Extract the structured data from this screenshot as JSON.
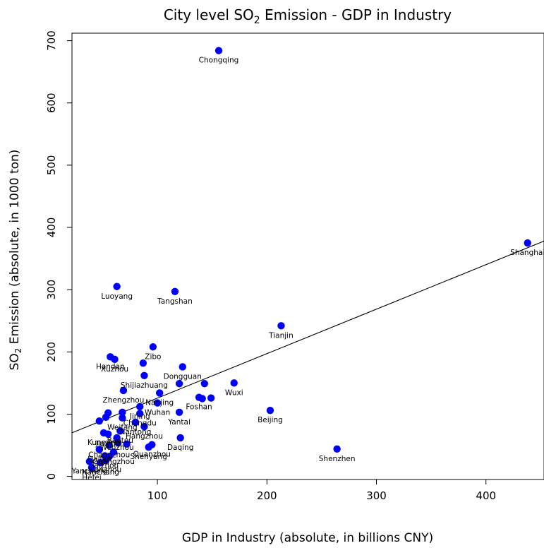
{
  "chart_data": {
    "type": "scatter",
    "title": "City level SO2 Emission - GDP in Industry",
    "title_parts": {
      "before": "City level SO",
      "subscript": "2",
      "after": " Emission - GDP in Industry"
    },
    "xlabel": "GDP in Industry (absolute, in billions CNY)",
    "ylabel": "SO2 Emission (absolute, in 1000 ton)",
    "ylabel_parts": {
      "before": "SO",
      "subscript": "2",
      "after": " Emission (absolute, in 1000 ton)"
    },
    "xlim": [
      22,
      453
    ],
    "ylim": [
      -5,
      712
    ],
    "x_ticks": [
      100,
      200,
      300,
      400
    ],
    "y_ticks": [
      0,
      100,
      200,
      300,
      400,
      500,
      600,
      700
    ],
    "grid": false,
    "point_color": "#0000ff",
    "trend_line": {
      "x1": 22,
      "y1": 70,
      "x2": 453,
      "y2": 378
    },
    "points": [
      {
        "x": 156,
        "y": 684,
        "label": "Chongqing"
      },
      {
        "x": 438,
        "y": 375,
        "label": "Shanghai"
      },
      {
        "x": 63,
        "y": 305,
        "label": "Luoyang"
      },
      {
        "x": 116,
        "y": 297,
        "label": "Tangshan"
      },
      {
        "x": 213,
        "y": 242,
        "label": "Tianjin"
      },
      {
        "x": 96,
        "y": 208,
        "label": "Zibo"
      },
      {
        "x": 57,
        "y": 192,
        "label": "Handan"
      },
      {
        "x": 61,
        "y": 188,
        "label": "Xuzhou"
      },
      {
        "x": 87,
        "y": 182,
        "label": ""
      },
      {
        "x": 123,
        "y": 176,
        "label": "Dongguan"
      },
      {
        "x": 88,
        "y": 162,
        "label": "Shijiazhuang"
      },
      {
        "x": 120,
        "y": 149,
        "label": ""
      },
      {
        "x": 143,
        "y": 149,
        "label": ""
      },
      {
        "x": 170,
        "y": 150,
        "label": "Wuxi"
      },
      {
        "x": 69,
        "y": 138,
        "label": "Zhengzhou"
      },
      {
        "x": 102,
        "y": 134,
        "label": "Nanjing"
      },
      {
        "x": 138,
        "y": 127,
        "label": "Foshan"
      },
      {
        "x": 149,
        "y": 126,
        "label": ""
      },
      {
        "x": 141,
        "y": 125,
        "label": ""
      },
      {
        "x": 100,
        "y": 118,
        "label": "Wuhan"
      },
      {
        "x": 84,
        "y": 112,
        "label": "Jining"
      },
      {
        "x": 203,
        "y": 106,
        "label": "Beijing"
      },
      {
        "x": 120,
        "y": 103,
        "label": "Yantai"
      },
      {
        "x": 68,
        "y": 103,
        "label": ""
      },
      {
        "x": 55,
        "y": 102,
        "label": ""
      },
      {
        "x": 84,
        "y": 101,
        "label": "Chengdu"
      },
      {
        "x": 68,
        "y": 94,
        "label": "Weifang"
      },
      {
        "x": 53,
        "y": 95,
        "label": ""
      },
      {
        "x": 47,
        "y": 89,
        "label": ""
      },
      {
        "x": 80,
        "y": 87,
        "label": "Nantong"
      },
      {
        "x": 88,
        "y": 80,
        "label": "Hangzhou"
      },
      {
        "x": 66,
        "y": 73,
        "label": "Baotou"
      },
      {
        "x": 51,
        "y": 70,
        "label": "Kunming"
      },
      {
        "x": 55,
        "y": 68,
        "label": "Jiaxing"
      },
      {
        "x": 63,
        "y": 62,
        "label": "Wenzhou"
      },
      {
        "x": 121,
        "y": 62,
        "label": "Daqing"
      },
      {
        "x": 64,
        "y": 54,
        "label": ""
      },
      {
        "x": 72,
        "y": 52,
        "label": ""
      },
      {
        "x": 95,
        "y": 51,
        "label": "Quanzhou"
      },
      {
        "x": 92,
        "y": 47,
        "label": "Shenyang"
      },
      {
        "x": 56,
        "y": 50,
        "label": "Changzhou"
      },
      {
        "x": 264,
        "y": 44,
        "label": "Shenzhen"
      },
      {
        "x": 47,
        "y": 43,
        "label": "Dalian"
      },
      {
        "x": 60,
        "y": 39,
        "label": "Guangzhou"
      },
      {
        "x": 52,
        "y": 33,
        "label": "Taizhou"
      },
      {
        "x": 56,
        "y": 32,
        "label": ""
      },
      {
        "x": 53,
        "y": 26,
        "label": "Lanzhou"
      },
      {
        "x": 38,
        "y": 24,
        "label": "Yancheng"
      },
      {
        "x": 48,
        "y": 22,
        "label": "Nanchang"
      },
      {
        "x": 40,
        "y": 14,
        "label": "Hefei"
      }
    ]
  }
}
